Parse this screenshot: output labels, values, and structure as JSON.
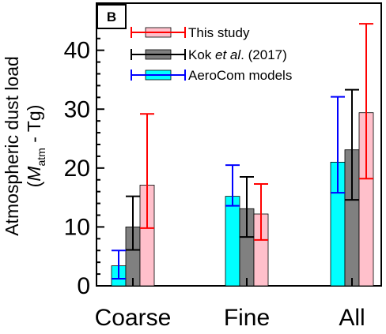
{
  "chart_data": {
    "type": "bar",
    "panel_label": "B",
    "ylabel": {
      "line1": "Atmospheric dust load",
      "line2_prefix": "(",
      "line2_var": "M",
      "line2_sub": "atm",
      "line2_suffix": " - Tg)"
    },
    "xlabel": "",
    "ylim": [
      0,
      48
    ],
    "yticks": [
      0,
      10,
      20,
      30,
      40
    ],
    "ytick_labels": [
      "0",
      "10",
      "20",
      "30",
      "40"
    ],
    "categories": [
      "Coarse",
      "Fine",
      "All"
    ],
    "grid": false,
    "legend_position": "top-left",
    "legend": [
      {
        "series": 2,
        "parts": [
          "This study"
        ]
      },
      {
        "series": 1,
        "parts": [
          "Kok ",
          "et al",
          ". (2017)"
        ],
        "italic_part": 1
      },
      {
        "series": 0,
        "parts": [
          "AeroCom models"
        ]
      }
    ],
    "series": [
      {
        "name": "AeroCom models",
        "fill": "#00ffff",
        "error_color": "#0000ff",
        "values": [
          3.4,
          15.2,
          21.0
        ],
        "err_low": [
          1.2,
          13.6,
          15.8
        ],
        "err_high": [
          6.0,
          20.5,
          32.1
        ]
      },
      {
        "name": "Kok et al. (2017)",
        "fill": "#808080",
        "error_color": "#000000",
        "values": [
          10.0,
          13.1,
          23.1
        ],
        "err_low": [
          6.1,
          8.3,
          14.6
        ],
        "err_high": [
          15.2,
          18.5,
          33.3
        ]
      },
      {
        "name": "This study",
        "fill": "#ffc0cb",
        "error_color": "#ff0000",
        "values": [
          17.1,
          12.2,
          29.4
        ],
        "err_low": [
          9.8,
          7.8,
          18.2
        ],
        "err_high": [
          29.2,
          17.3,
          44.5
        ]
      }
    ]
  }
}
